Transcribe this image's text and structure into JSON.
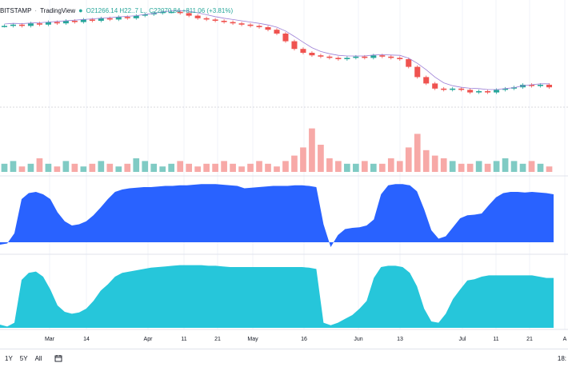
{
  "legend": {
    "symbol": "BITSTAMP",
    "separator": "·",
    "source": "TradingView",
    "live_dot": "●",
    "ohlc": "O21266.14 H22..7 L..  C22070.84 +811.06 (+3.81%)"
  },
  "x_axis": {
    "labels": [
      "Mar",
      "14",
      "Apr",
      "11",
      "21",
      "May",
      "16",
      "Jun",
      "13",
      "Jul",
      "11",
      "21",
      "A"
    ]
  },
  "bottom_bar": {
    "ranges": [
      "1Y",
      "5Y",
      "All"
    ],
    "time": "18:"
  },
  "colors": {
    "up": "#26a69a",
    "down": "#ef5350",
    "vol_up": "#80cbc4",
    "vol_down": "#f7a9a7",
    "ma_line": "#9c7fd6",
    "indicator1": "#2962ff",
    "indicator2": "#26c6da"
  },
  "chart_data": [
    {
      "type": "candlestick",
      "title": "",
      "note": "price series shown without price scale; values in relative units 0-100",
      "series": [
        {
          "name": "price",
          "values": [
            86,
            87,
            86,
            88,
            87,
            89,
            88,
            90,
            89,
            91,
            90,
            92,
            91,
            93,
            92,
            94,
            95,
            96,
            97,
            97,
            96,
            94,
            92,
            91,
            90,
            89,
            88,
            87,
            86,
            85,
            83,
            80,
            74,
            68,
            65,
            63,
            62,
            61,
            60,
            61,
            62,
            61,
            63,
            62,
            61,
            60,
            54,
            46,
            41,
            37,
            36,
            37,
            36,
            34,
            35,
            34,
            36,
            37,
            38,
            40,
            39,
            40,
            38
          ]
        }
      ]
    },
    {
      "type": "bar",
      "title": "",
      "series": [
        {
          "name": "volume",
          "values": [
            3,
            4,
            2,
            3,
            5,
            3,
            2,
            4,
            3,
            2,
            3,
            4,
            3,
            2,
            3,
            5,
            4,
            3,
            2,
            3,
            4,
            3,
            2,
            3,
            3,
            4,
            3,
            2,
            3,
            4,
            3,
            2,
            4,
            6,
            9,
            16,
            10,
            5,
            4,
            3,
            3,
            4,
            3,
            3,
            5,
            4,
            9,
            14,
            8,
            6,
            5,
            4,
            3,
            3,
            4,
            3,
            4,
            5,
            4,
            3,
            4,
            3,
            2
          ]
        }
      ]
    },
    {
      "type": "area",
      "title": "",
      "series": [
        {
          "name": "indicator-1",
          "values": [
            -4,
            -2,
            15,
            72,
            82,
            84,
            80,
            72,
            50,
            35,
            28,
            30,
            35,
            45,
            58,
            72,
            84,
            88,
            90,
            91,
            92,
            92,
            93,
            94,
            94,
            95,
            95,
            96,
            97,
            97,
            97,
            96,
            95,
            94,
            90,
            91,
            92,
            93,
            94,
            94,
            94,
            95,
            95,
            94,
            92,
            30,
            -8,
            12,
            22,
            24,
            25,
            28,
            38,
            80,
            95,
            97,
            97,
            95,
            85,
            55,
            20,
            6,
            10,
            25,
            40,
            45,
            46,
            48,
            62,
            75,
            82,
            84,
            84,
            83,
            84,
            83,
            82,
            80
          ]
        }
      ]
    },
    {
      "type": "area",
      "title": "",
      "series": [
        {
          "name": "indicator-2",
          "values": [
            5,
            2,
            8,
            75,
            86,
            88,
            80,
            60,
            35,
            25,
            22,
            24,
            30,
            42,
            58,
            68,
            80,
            86,
            88,
            90,
            92,
            94,
            95,
            96,
            97,
            98,
            98,
            98,
            98,
            97,
            97,
            96,
            95,
            95,
            95,
            95,
            95,
            95,
            95,
            95,
            95,
            95,
            95,
            94,
            92,
            8,
            4,
            8,
            14,
            20,
            30,
            42,
            78,
            95,
            97,
            97,
            95,
            86,
            65,
            30,
            10,
            8,
            22,
            45,
            60,
            74,
            76,
            80,
            82,
            82,
            82,
            82,
            82,
            82,
            82,
            80,
            78,
            78
          ]
        }
      ]
    }
  ]
}
